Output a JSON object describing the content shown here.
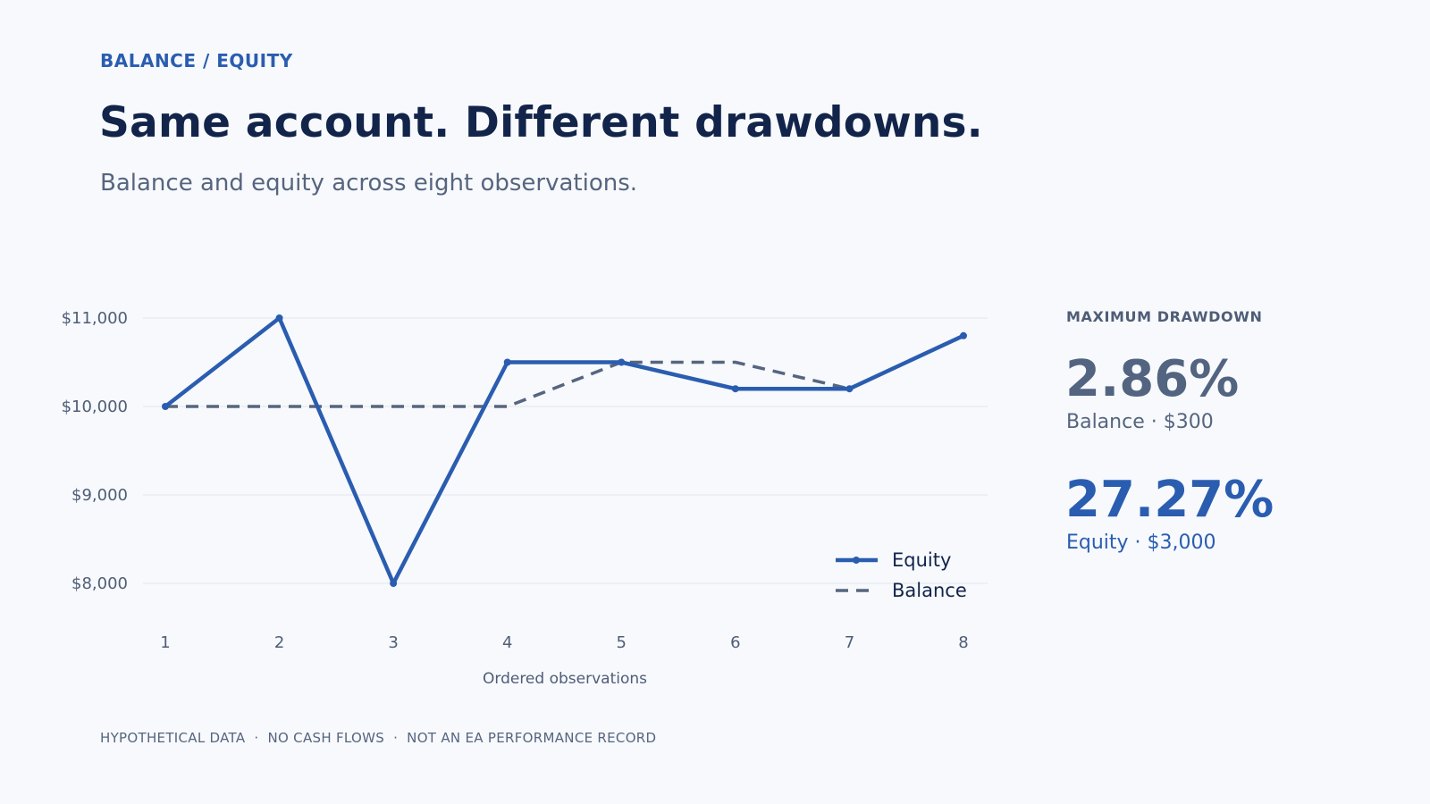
{
  "header": {
    "eyebrow": "BALANCE / EQUITY",
    "title": "Same account. Different drawdowns.",
    "subtitle": "Balance and equity across eight observations."
  },
  "stats": {
    "label": "MAXIMUM DRAWDOWN",
    "balance_value": "2.86%",
    "balance_sub": "Balance · $300",
    "equity_value": "27.27%",
    "equity_sub": "Equity · $3,000"
  },
  "footer": {
    "items": [
      "HYPOTHETICAL DATA",
      "NO CASH FLOWS",
      "NOT AN EA PERFORMANCE RECORD"
    ],
    "separator": "·"
  },
  "colors": {
    "equity": "#2a5db0",
    "balance": "#56657f",
    "grid": "#e1e6ee",
    "tick": "#4f5d77"
  },
  "chart_data": {
    "type": "line",
    "x": [
      1,
      2,
      3,
      4,
      5,
      6,
      7,
      8
    ],
    "series": [
      {
        "name": "Equity",
        "values": [
          10000,
          11000,
          8000,
          10500,
          10500,
          10200,
          10200,
          10800
        ],
        "style": "solid",
        "markers": true
      },
      {
        "name": "Balance",
        "values": [
          10000,
          10000,
          10000,
          10000,
          10500,
          10500,
          10200,
          10800
        ],
        "style": "dashed",
        "markers": false
      }
    ],
    "yticks": [
      8000,
      9000,
      10000,
      11000
    ],
    "ytick_labels": [
      "$8,000",
      "$9,000",
      "$10,000",
      "$11,000"
    ],
    "xtick_labels": [
      "1",
      "2",
      "3",
      "4",
      "5",
      "6",
      "7",
      "8"
    ],
    "xlabel": "Ordered observations",
    "ylabel": "",
    "ylim": [
      8000,
      11000
    ],
    "grid": true,
    "legend_position": "bottom-right"
  }
}
